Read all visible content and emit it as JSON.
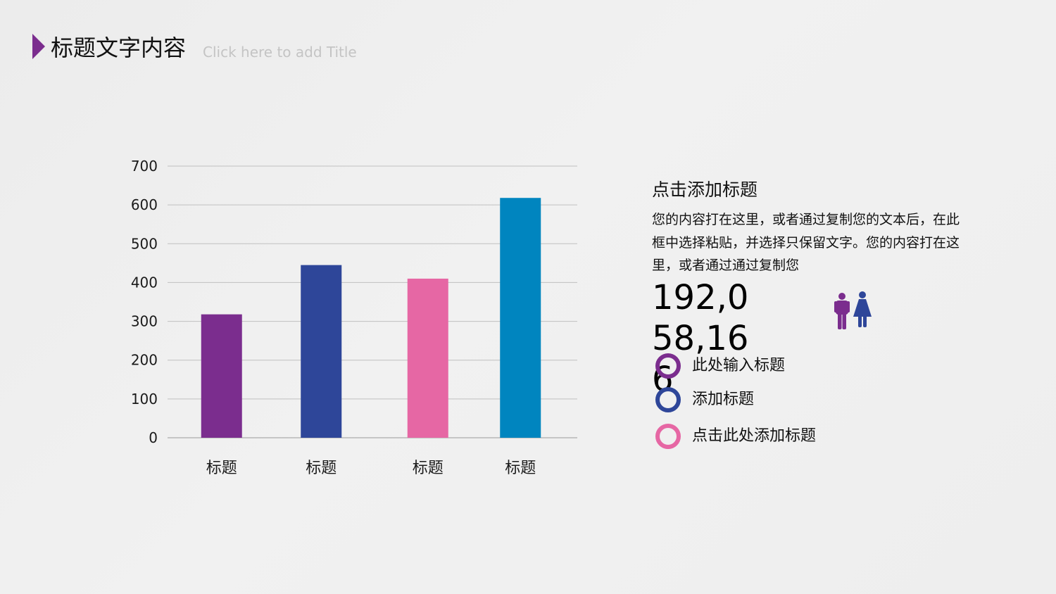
{
  "header": {
    "title": "标题文字内容",
    "subtitle": "Click here to add Title",
    "accent_color": "#7b2d8e"
  },
  "chart_data": {
    "type": "bar",
    "categories": [
      "标题",
      "标题",
      "标题",
      "标题"
    ],
    "values": [
      318,
      445,
      410,
      618
    ],
    "colors": [
      "#7b2d8e",
      "#2e4699",
      "#e667a4",
      "#0085bf"
    ],
    "ylim": [
      0,
      700
    ],
    "yticks": [
      0,
      100,
      200,
      300,
      400,
      500,
      600,
      700
    ],
    "grid": true
  },
  "side": {
    "title": "点击添加标题",
    "body": "您的内容打在这里，或者通过复制您的文本后，在此框中选择粘贴，并选择只保留文字。您的内容打在这里，或者通过通过复制您",
    "big_number": "192,058,166",
    "icons": [
      "male-person-icon",
      "female-person-icon"
    ],
    "icon_colors": [
      "#7b2d8e",
      "#2e4699"
    ]
  },
  "legend": [
    {
      "label": "此处输入标题",
      "color": "#7b2d8e"
    },
    {
      "label": "添加标题",
      "color": "#2e4699"
    },
    {
      "label": "点击此处添加标题",
      "color": "#e667a4"
    }
  ]
}
